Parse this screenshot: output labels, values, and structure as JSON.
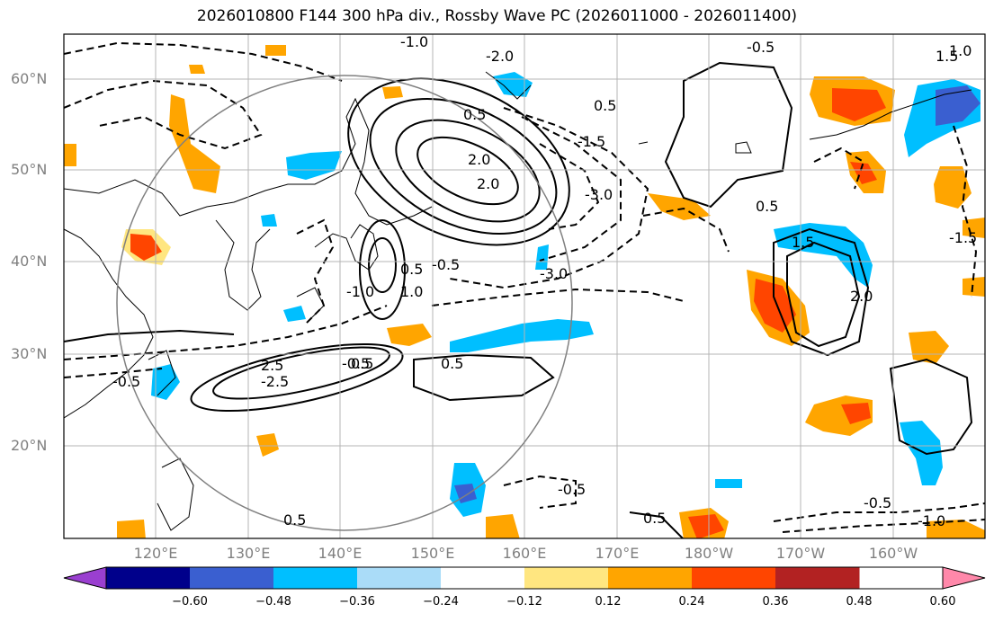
{
  "title": "2026010800 F144 300 hPa div., Rossby Wave PC (2026011000 - 2026011400)",
  "axes": {
    "lat_labels": [
      "60°N",
      "50°N",
      "40°N",
      "30°N",
      "20°N"
    ],
    "lon_labels": [
      "120°E",
      "130°E",
      "140°E",
      "150°E",
      "160°E",
      "170°E",
      "180°W",
      "170°W",
      "160°W"
    ]
  },
  "contour_labels": [
    "-2.0",
    "-1.0",
    "-0.5",
    "0.5",
    "1.0",
    "1.5",
    "2.0",
    "-1.5",
    "-3.0",
    "-2.5",
    "2.5",
    "-3.0",
    "0.5",
    "-0.5",
    "1.0",
    "-1.0",
    "2.0",
    "0.5",
    "-0.5",
    "0.5",
    "1.5",
    "2.0",
    "0.5",
    "-1.5",
    "0.5",
    "-0.5",
    "-0.5",
    "-1.0",
    "0.5",
    "-0.5",
    "0.5"
  ],
  "colorbar": {
    "ticks": [
      "−0.60",
      "−0.48",
      "−0.36",
      "−0.24",
      "−0.12",
      "0.12",
      "0.24",
      "0.36",
      "0.48",
      "0.60"
    ],
    "colors": [
      "#9a3fd0",
      "#00008b",
      "#3a5fd0",
      "#00bfff",
      "#aadcf8",
      "#ffffff",
      "#ffe680",
      "#ffa500",
      "#ff4500",
      "#b22222",
      "#ff88aa"
    ]
  },
  "colors": {
    "frame": "#000000",
    "grid": "#b4b4b4",
    "circle": "#808080"
  }
}
